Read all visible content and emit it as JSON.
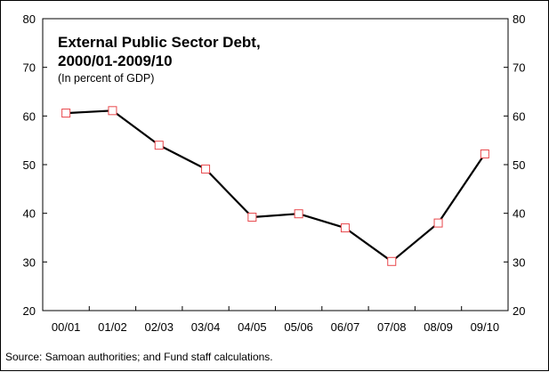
{
  "chart_data": {
    "type": "line",
    "title_lines": [
      "External Public Sector Debt,",
      "2000/01-2009/10"
    ],
    "subtitle": "(In percent of GDP)",
    "categories": [
      "00/01",
      "01/02",
      "02/03",
      "03/04",
      "04/05",
      "05/06",
      "06/07",
      "07/08",
      "08/09",
      "09/10"
    ],
    "series": [
      {
        "values": [
          60.6,
          61.1,
          54.0,
          49.1,
          39.2,
          39.9,
          37.0,
          30.1,
          38.0,
          52.2
        ]
      }
    ],
    "ylim": [
      20,
      80
    ],
    "y_ticks": [
      20,
      30,
      40,
      50,
      60,
      70,
      80
    ],
    "y_axis_sides": [
      "left",
      "right"
    ],
    "grid": false,
    "legend": "none",
    "line_color": "#000000",
    "marker_edge_color": "#e8474b",
    "marker_face_color": "#ffffff",
    "marker_shape": "square"
  },
  "source_note": "Source: Samoan authorities; and Fund staff calculations."
}
